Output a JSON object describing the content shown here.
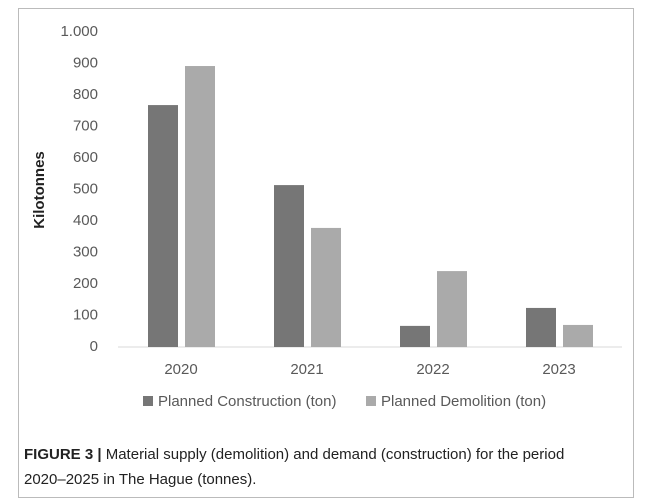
{
  "chart_data": {
    "type": "bar",
    "ylabel": "Kilotonnes",
    "categories": [
      "2020",
      "2021",
      "2022",
      "2023"
    ],
    "series": [
      {
        "name": "Planned Construction (ton)",
        "color": "#767676",
        "values": [
          768,
          514,
          67,
          124
        ]
      },
      {
        "name": "Planned Demolition (ton)",
        "color": "#aaaaaa",
        "values": [
          892,
          378,
          241,
          70
        ]
      }
    ],
    "ylim": [
      0,
      1000
    ],
    "yticks": [
      0,
      100,
      200,
      300,
      400,
      500,
      600,
      700,
      800,
      900,
      {
        "value": 1000,
        "label": "1.000"
      }
    ],
    "grid": false,
    "legend": "bottom"
  },
  "caption_label": "FIGURE 3 |",
  "caption": "Material supply (demolition) and demand (construction) for the period 2020–2025 in The Hague (tonnes)."
}
